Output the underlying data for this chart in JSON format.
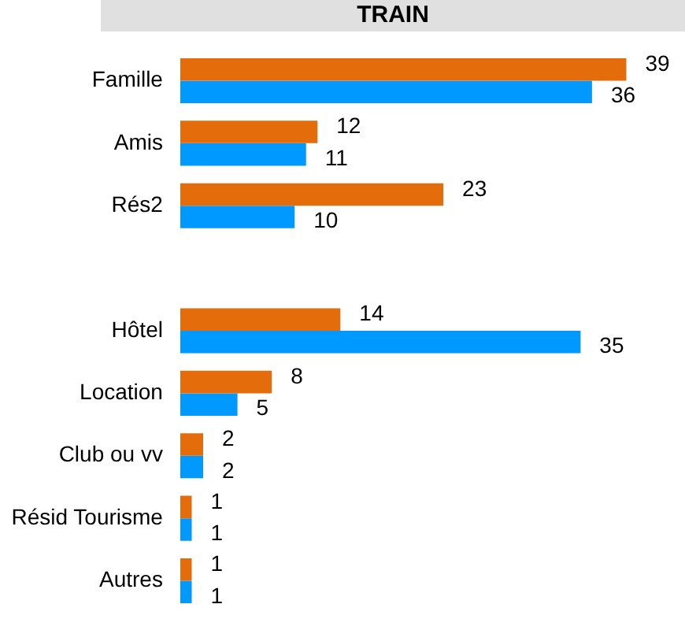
{
  "chart_data": {
    "type": "bar",
    "orientation": "horizontal",
    "title": "TRAIN",
    "categories": [
      "Famille",
      "Amis",
      "Rés2",
      null,
      "Hôtel",
      "Location",
      "Club ou vv",
      "Résid Tourisme",
      "Autres"
    ],
    "series": [
      {
        "color": "#e46c0a",
        "values": [
          39,
          12,
          23,
          null,
          14,
          8,
          2,
          1,
          1
        ]
      },
      {
        "color": "#0099ff",
        "values": [
          36,
          11,
          10,
          null,
          35,
          5,
          2,
          1,
          1
        ]
      }
    ],
    "tick_labels": "y",
    "grid": false,
    "legend": false,
    "data_labels": true
  }
}
